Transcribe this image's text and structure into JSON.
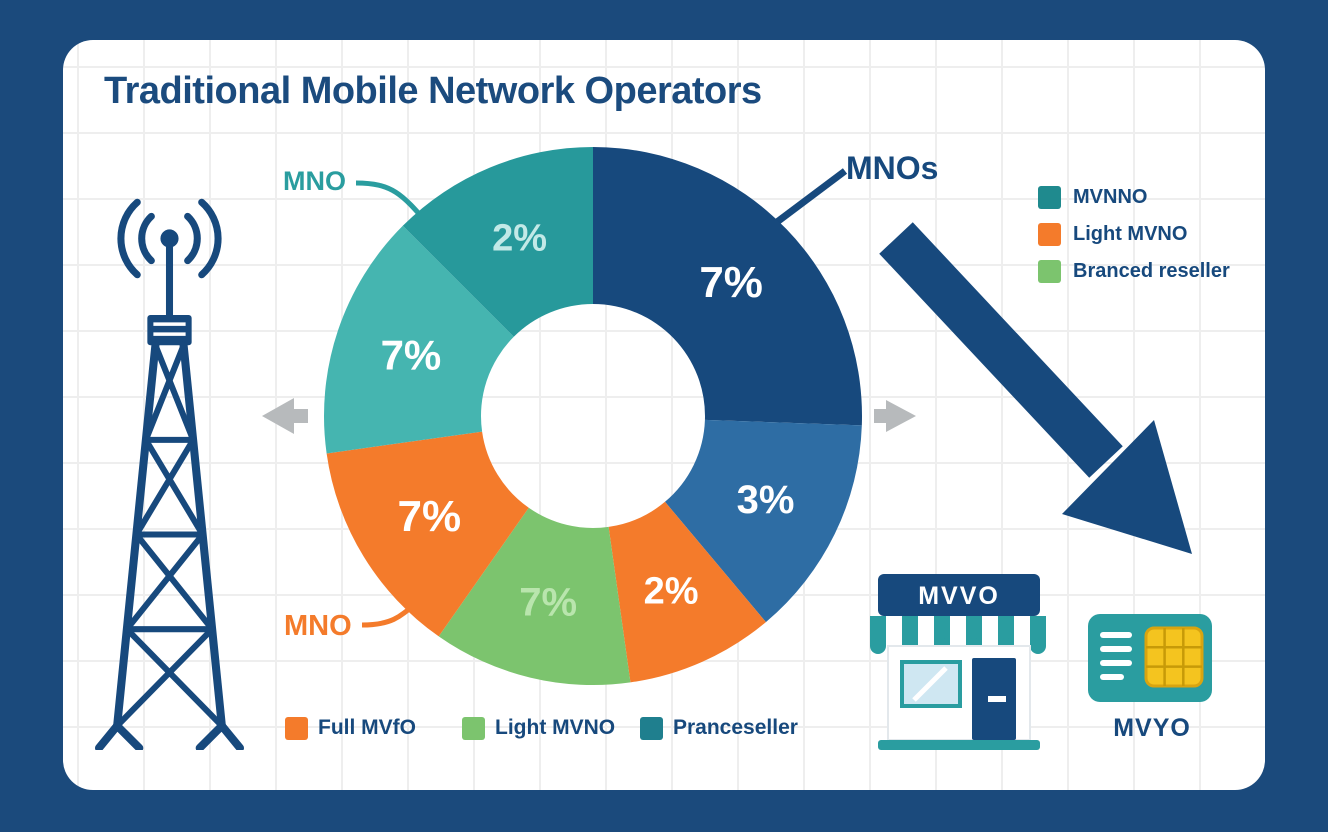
{
  "title": "Traditional Mobile Network Operators",
  "palette": {
    "frame_navy": "#1b4a7c",
    "navy": "#17497d",
    "blue": "#2e6da4",
    "teal": "#27999b",
    "teal_light": "#45b5b0",
    "orange": "#f47b2b",
    "green": "#7cc46e",
    "gray_arrow": "#b7babc"
  },
  "callouts": {
    "mno_teal": "MNO",
    "mnos_navy": "MNOs",
    "mno_orange": "MNO"
  },
  "right_legend": {
    "items": [
      {
        "label": "MVNNO",
        "color": "#1f8a8e"
      },
      {
        "label": "Light MVNO",
        "color": "#f47b2b"
      },
      {
        "label": "Branced reseller",
        "color": "#7cc46e"
      }
    ]
  },
  "bottom_legend": {
    "items": [
      {
        "label": "Full MVfO",
        "color": "#f47b2b"
      },
      {
        "label": "Light MVNO",
        "color": "#7cc46e"
      },
      {
        "label": "Pranceseller",
        "color": "#1f7f8e"
      }
    ]
  },
  "store": {
    "sign": "MVVO"
  },
  "sim": {
    "label": "MVYO"
  },
  "chart_data": {
    "type": "pie",
    "donut": true,
    "title": "Traditional Mobile Network Operators",
    "center": [
      593,
      416
    ],
    "outer_radius": 269,
    "inner_radius": 112,
    "label_radius": 192,
    "legend_right": [
      "MVNNO",
      "Light MVNO",
      "Branced reseller"
    ],
    "legend_bottom": [
      "Full MVfO",
      "Light MVNO",
      "Pranceseller"
    ],
    "segments": [
      {
        "name": "mnos-navy",
        "label": "7%",
        "value": 7,
        "start_deg": 0,
        "end_deg": 92,
        "color": "#17497d",
        "label_color": "#ffffff",
        "label_size": 44
      },
      {
        "name": "blue",
        "label": "3%",
        "value": 3,
        "start_deg": 92,
        "end_deg": 140,
        "color": "#2e6da4",
        "label_color": "#ffffff",
        "label_size": 40
      },
      {
        "name": "orange-small",
        "label": "2%",
        "value": 2,
        "start_deg": 140,
        "end_deg": 172,
        "color": "#f47b2b",
        "label_color": "#ffffff",
        "label_size": 38
      },
      {
        "name": "green",
        "label": "7%",
        "value": 7,
        "start_deg": 172,
        "end_deg": 215,
        "color": "#7cc46e",
        "label_color": "#b9e5ad",
        "label_size": 40
      },
      {
        "name": "orange-large",
        "label": "7%",
        "value": 7,
        "start_deg": 215,
        "end_deg": 262,
        "color": "#f47b2b",
        "label_color": "#ffffff",
        "label_size": 44
      },
      {
        "name": "teal-light",
        "label": "7%",
        "value": 7,
        "start_deg": 262,
        "end_deg": 315,
        "color": "#45b5b0",
        "label_color": "#ffffff",
        "label_size": 42
      },
      {
        "name": "teal",
        "label": "2%",
        "value": 2,
        "start_deg": 315,
        "end_deg": 360,
        "color": "#27999b",
        "label_color": "#c2e9e7",
        "label_size": 38
      }
    ]
  }
}
